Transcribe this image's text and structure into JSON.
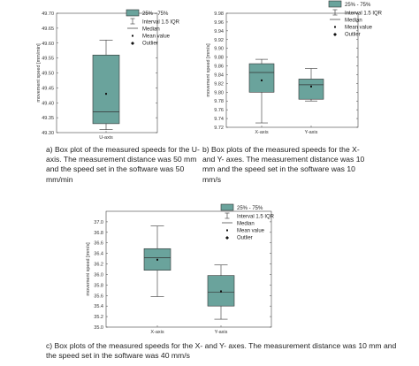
{
  "colors": {
    "box_fill": "#6aa39c",
    "box_stroke": "#333333",
    "mean": "#111111"
  },
  "legend": {
    "box": "25% - 75%",
    "whisker": "Interval 1.5 IQR",
    "median": "Median",
    "mean": "Mean value",
    "outlier": "Outlier"
  },
  "chart_data": [
    {
      "id": "a",
      "type": "box",
      "ylabel": "movement speed [mm/min]",
      "ylim": [
        49.3,
        49.7
      ],
      "yticks": [
        49.3,
        49.35,
        49.4,
        49.45,
        49.5,
        49.55,
        49.6,
        49.65,
        49.7
      ],
      "ytick_labels": [
        "49.30",
        "49.35",
        "49.40",
        "49.45",
        "49.50",
        "49.55",
        "49.60",
        "49.65",
        "49.70"
      ],
      "categories": [
        "U-axis"
      ],
      "boxes": [
        {
          "min": 49.31,
          "q1": 49.33,
          "median": 49.37,
          "q3": 49.56,
          "max": 49.61,
          "mean": 49.43
        }
      ],
      "caption": "a) Box plot of the measured speeds for the U- axis. The measurement distance was 50 mm and the speed set in the software was 50 mm/min"
    },
    {
      "id": "b",
      "type": "box",
      "ylabel": "movement speed [mm/s]",
      "ylim": [
        9.72,
        9.98
      ],
      "yticks": [
        9.72,
        9.74,
        9.76,
        9.78,
        9.8,
        9.82,
        9.84,
        9.86,
        9.88,
        9.9,
        9.92,
        9.94,
        9.96,
        9.98
      ],
      "ytick_labels": [
        "9.72",
        "9.74",
        "9.76",
        "9.78",
        "9.80",
        "9.82",
        "9.84",
        "9.86",
        "9.88",
        "9.90",
        "9.92",
        "9.94",
        "9.96",
        "9.98"
      ],
      "categories": [
        "X-axis",
        "Y-axis"
      ],
      "boxes": [
        {
          "min": 9.73,
          "q1": 9.8,
          "median": 9.845,
          "q3": 9.865,
          "max": 9.875,
          "mean": 9.827
        },
        {
          "min": 9.78,
          "q1": 9.784,
          "median": 9.817,
          "q3": 9.83,
          "max": 9.854,
          "mean": 9.813
        }
      ],
      "caption": "b) Box plots of the measured speeds for the X- and Y- axes. The measurement distance was 10 mm and the speed set in the software was 10 mm/s"
    },
    {
      "id": "c",
      "type": "box",
      "ylabel": "movement speed [mm/s]",
      "ylim": [
        35.0,
        37.2
      ],
      "yticks": [
        35.0,
        35.2,
        35.4,
        35.6,
        35.8,
        36.0,
        36.2,
        36.4,
        36.6,
        36.8,
        37.0
      ],
      "ytick_labels": [
        "35.0",
        "35.2",
        "35.4",
        "35.6",
        "35.8",
        "36.0",
        "36.2",
        "36.4",
        "36.6",
        "36.8",
        "37.0"
      ],
      "categories": [
        "X-axis",
        "Y-axis"
      ],
      "boxes": [
        {
          "min": 35.58,
          "q1": 36.08,
          "median": 36.32,
          "q3": 36.49,
          "max": 36.92,
          "mean": 36.28
        },
        {
          "min": 35.15,
          "q1": 35.4,
          "median": 35.66,
          "q3": 35.98,
          "max": 36.18,
          "mean": 35.68
        }
      ],
      "caption": "c) Box plots of the measured speeds for the X- and Y- axes. The measurement distance was 10 mm and the speed set in the software was 40 mm/s"
    }
  ]
}
